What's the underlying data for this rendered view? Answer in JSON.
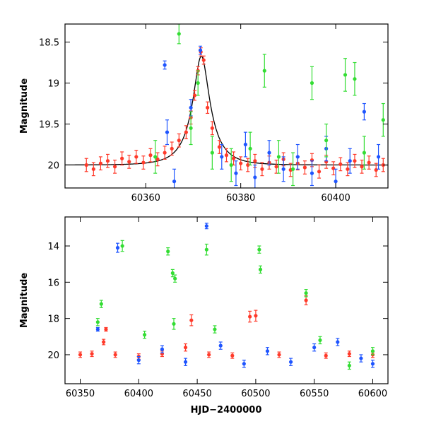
{
  "chart_data": [
    {
      "type": "scatter",
      "panel": "top",
      "title": "",
      "xlabel": "",
      "ylabel": "Magnitude",
      "xlim": [
        60343,
        60411
      ],
      "ylim": [
        20.28,
        18.28
      ],
      "y_inverted": true,
      "xticks": [
        60360,
        60380,
        60400
      ],
      "yticks": [
        18.5,
        19,
        19.5,
        20
      ],
      "grid": false,
      "model_curve": {
        "name": "",
        "baseline": 20.0,
        "peak": 18.67,
        "t0": 60371.7,
        "u0": 0.35,
        "tE": 5.0,
        "color": "#000000"
      },
      "series": [
        {
          "name": "",
          "color": "#ff3a2a",
          "points": [
            [
              60347.5,
              20.0,
              0.08
            ],
            [
              60349,
              20.05,
              0.08
            ],
            [
              60350.5,
              19.98,
              0.08
            ],
            [
              60352,
              19.95,
              0.08
            ],
            [
              60353.5,
              20.02,
              0.08
            ],
            [
              60355,
              19.92,
              0.08
            ],
            [
              60356.5,
              19.96,
              0.08
            ],
            [
              60358,
              19.9,
              0.08
            ],
            [
              60359.5,
              19.97,
              0.08
            ],
            [
              60361,
              19.88,
              0.08
            ],
            [
              60362.5,
              19.93,
              0.08
            ],
            [
              60364,
              19.85,
              0.08
            ],
            [
              60365.5,
              19.8,
              0.08
            ],
            [
              60367,
              19.7,
              0.08
            ],
            [
              60368.5,
              19.6,
              0.08
            ],
            [
              60369.5,
              19.42,
              0.08
            ],
            [
              60370.3,
              19.15,
              0.06
            ],
            [
              60371,
              18.85,
              0.05
            ],
            [
              60371.6,
              18.62,
              0.05
            ],
            [
              60372.2,
              18.72,
              0.05
            ],
            [
              60373,
              19.3,
              0.07
            ],
            [
              60374,
              19.55,
              0.08
            ],
            [
              60375.5,
              19.78,
              0.08
            ],
            [
              60377,
              19.88,
              0.08
            ],
            [
              60378.5,
              19.92,
              0.08
            ],
            [
              60380,
              19.98,
              0.08
            ],
            [
              60381.5,
              20.0,
              0.08
            ],
            [
              60383,
              19.95,
              0.08
            ],
            [
              60384.5,
              20.05,
              0.08
            ],
            [
              60386,
              19.97,
              0.08
            ],
            [
              60387.5,
              20.02,
              0.08
            ],
            [
              60389,
              19.93,
              0.08
            ],
            [
              60390.5,
              20.06,
              0.08
            ],
            [
              60392,
              19.98,
              0.08
            ],
            [
              60393.5,
              20.03,
              0.08
            ],
            [
              60395,
              19.94,
              0.08
            ],
            [
              60396.5,
              20.08,
              0.08
            ],
            [
              60398,
              19.96,
              0.08
            ],
            [
              60399.5,
              20.04,
              0.08
            ],
            [
              60401,
              19.99,
              0.08
            ],
            [
              60402.5,
              20.05,
              0.08
            ],
            [
              60404,
              19.95,
              0.08
            ],
            [
              60405.5,
              20.02,
              0.08
            ],
            [
              60407,
              19.97,
              0.08
            ],
            [
              60408.5,
              20.06,
              0.08
            ],
            [
              60410,
              20.0,
              0.08
            ]
          ]
        },
        {
          "name": "",
          "color": "#1f55ff",
          "points": [
            [
              60364,
              18.78,
              0.05
            ],
            [
              60364.5,
              19.6,
              0.15
            ],
            [
              60366,
              20.2,
              0.15
            ],
            [
              60369.5,
              19.3,
              0.1
            ],
            [
              60371.5,
              18.6,
              0.05
            ],
            [
              60376,
              19.9,
              0.15
            ],
            [
              60379,
              20.1,
              0.15
            ],
            [
              60381,
              19.75,
              0.15
            ],
            [
              60383,
              20.15,
              0.15
            ],
            [
              60386,
              19.85,
              0.15
            ],
            [
              60389,
              20.05,
              0.15
            ],
            [
              60392,
              19.9,
              0.15
            ],
            [
              60395,
              20.1,
              0.15
            ],
            [
              60398,
              19.8,
              0.15
            ],
            [
              60400,
              20.2,
              0.15
            ],
            [
              60403,
              19.95,
              0.15
            ],
            [
              60406,
              19.35,
              0.1
            ],
            [
              60409,
              19.9,
              0.15
            ]
          ]
        },
        {
          "name": "",
          "color": "#33dd33",
          "points": [
            [
              60362,
              19.9,
              0.2
            ],
            [
              60367,
              18.4,
              0.12
            ],
            [
              60369.5,
              19.55,
              0.2
            ],
            [
              60371,
              19.0,
              0.15
            ],
            [
              60374,
              19.85,
              0.2
            ],
            [
              60378,
              20.0,
              0.2
            ],
            [
              60382,
              19.8,
              0.2
            ],
            [
              60385,
              18.85,
              0.2
            ],
            [
              60388,
              19.9,
              0.2
            ],
            [
              60391,
              20.05,
              0.2
            ],
            [
              60395,
              19.0,
              0.2
            ],
            [
              60398,
              19.7,
              0.2
            ],
            [
              60402,
              18.9,
              0.2
            ],
            [
              60404,
              18.95,
              0.2
            ],
            [
              60406,
              19.85,
              0.2
            ],
            [
              60410,
              19.45,
              0.2
            ]
          ]
        }
      ]
    },
    {
      "type": "scatter",
      "panel": "bottom",
      "title": "",
      "xlabel": "HJD−2400000",
      "ylabel": "Magnitude",
      "xlim": [
        60337,
        60613
      ],
      "ylim": [
        21.6,
        12.4
      ],
      "y_inverted": true,
      "xticks": [
        60350,
        60400,
        60450,
        60500,
        60550,
        60600
      ],
      "yticks": [
        14,
        16,
        18,
        20
      ],
      "grid": false,
      "series": [
        {
          "name": "",
          "color": "#ff3a2a",
          "points": [
            [
              60350,
              20.0,
              0.15
            ],
            [
              60360,
              19.95,
              0.15
            ],
            [
              60370,
              19.3,
              0.15
            ],
            [
              60372,
              18.6,
              0.1
            ],
            [
              60380,
              20.0,
              0.15
            ],
            [
              60400,
              20.1,
              0.15
            ],
            [
              60420,
              19.95,
              0.15
            ],
            [
              60440,
              19.6,
              0.2
            ],
            [
              60445,
              18.1,
              0.3
            ],
            [
              60460,
              20.0,
              0.15
            ],
            [
              60480,
              20.05,
              0.15
            ],
            [
              60495,
              17.9,
              0.3
            ],
            [
              60500,
              17.85,
              0.3
            ],
            [
              60520,
              20.0,
              0.15
            ],
            [
              60543,
              17.0,
              0.25
            ],
            [
              60560,
              20.05,
              0.15
            ],
            [
              60580,
              19.95,
              0.15
            ],
            [
              60600,
              20.0,
              0.15
            ]
          ]
        },
        {
          "name": "",
          "color": "#1f55ff",
          "points": [
            [
              60365,
              18.6,
              0.1
            ],
            [
              60382,
              14.1,
              0.25
            ],
            [
              60400,
              20.3,
              0.2
            ],
            [
              60420,
              19.7,
              0.2
            ],
            [
              60440,
              20.4,
              0.2
            ],
            [
              60458,
              12.9,
              0.15
            ],
            [
              60470,
              19.5,
              0.2
            ],
            [
              60490,
              20.5,
              0.2
            ],
            [
              60510,
              19.8,
              0.2
            ],
            [
              60530,
              20.4,
              0.2
            ],
            [
              60550,
              19.6,
              0.2
            ],
            [
              60570,
              19.3,
              0.2
            ],
            [
              60590,
              20.2,
              0.2
            ],
            [
              60600,
              20.5,
              0.2
            ]
          ]
        },
        {
          "name": "",
          "color": "#33dd33",
          "points": [
            [
              60365,
              18.2,
              0.2
            ],
            [
              60368,
              17.2,
              0.2
            ],
            [
              60386,
              14.0,
              0.3
            ],
            [
              60405,
              18.9,
              0.2
            ],
            [
              60425,
              14.3,
              0.2
            ],
            [
              60429,
              15.5,
              0.2
            ],
            [
              60431,
              15.8,
              0.2
            ],
            [
              60430,
              18.3,
              0.3
            ],
            [
              60458,
              14.2,
              0.3
            ],
            [
              60465,
              18.6,
              0.2
            ],
            [
              60503,
              14.2,
              0.2
            ],
            [
              60504,
              15.3,
              0.2
            ],
            [
              60543,
              16.6,
              0.2
            ],
            [
              60555,
              19.2,
              0.2
            ],
            [
              60580,
              20.6,
              0.2
            ],
            [
              60600,
              19.8,
              0.2
            ]
          ]
        }
      ]
    }
  ]
}
